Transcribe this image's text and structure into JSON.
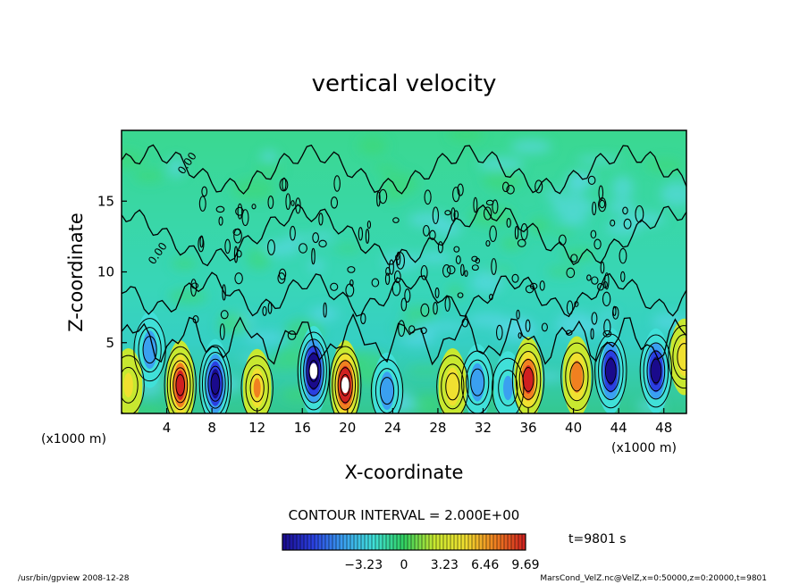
{
  "chart_data": {
    "type": "heatmap",
    "title": "vertical velocity",
    "xlabel": "X-coordinate",
    "ylabel": "Z-coordinate",
    "x_unit_left": "(x1000 m)",
    "x_unit_right": "(x1000 m)",
    "xlim": [
      0,
      50
    ],
    "ylim": [
      0,
      20
    ],
    "x_ticks": [
      4,
      8,
      12,
      16,
      20,
      24,
      28,
      32,
      36,
      40,
      44,
      48
    ],
    "y_ticks": [
      5,
      10,
      15
    ],
    "contour_interval_text": "CONTOUR INTERVAL = 2.000E+00",
    "contour_labels": [
      "0.00",
      "0.00"
    ],
    "time_text": "t=9801 s",
    "colorbar": {
      "range": [
        -9.69,
        9.69
      ],
      "ticks": [
        -3.23,
        0,
        3.23,
        6.46,
        9.69
      ],
      "tick_labels": [
        "−3.23",
        "0",
        "3.23",
        "6.46",
        "9.69"
      ],
      "colors": [
        "#1a0a8c",
        "#2a40e0",
        "#3aa0f0",
        "#40e0d8",
        "#30d060",
        "#c8e830",
        "#f0e030",
        "#f08020",
        "#d02020"
      ]
    },
    "updrafts": [
      {
        "x": 5.2,
        "z": 2.0,
        "w": 9.5
      },
      {
        "x": 12.0,
        "z": 1.8,
        "w": 5.5
      },
      {
        "x": 19.8,
        "z": 2.0,
        "w": 9.6
      },
      {
        "x": 29.3,
        "z": 1.9,
        "w": 5.0
      },
      {
        "x": 36.0,
        "z": 2.4,
        "w": 8.0
      },
      {
        "x": 40.3,
        "z": 2.6,
        "w": 6.5
      },
      {
        "x": 49.8,
        "z": 4.0,
        "w": 5.0
      },
      {
        "x": 0.6,
        "z": 2.0,
        "w": 4.0
      }
    ],
    "downdrafts": [
      {
        "x": 2.5,
        "z": 4.5,
        "w": -5.0
      },
      {
        "x": 8.3,
        "z": 2.1,
        "w": -9.5
      },
      {
        "x": 17.0,
        "z": 3.0,
        "w": -9.7
      },
      {
        "x": 23.5,
        "z": 1.6,
        "w": -5.0
      },
      {
        "x": 31.5,
        "z": 2.2,
        "w": -5.0
      },
      {
        "x": 34.2,
        "z": 1.8,
        "w": -4.0
      },
      {
        "x": 43.3,
        "z": 3.0,
        "w": -8.5
      },
      {
        "x": 47.3,
        "z": 3.0,
        "w": -8.0
      }
    ]
  },
  "footer": {
    "left": "/usr/bin/gpview   2008-12-28",
    "right": "MarsCond_VelZ.nc@VelZ,x=0:50000,z=0:20000,t=9801"
  }
}
